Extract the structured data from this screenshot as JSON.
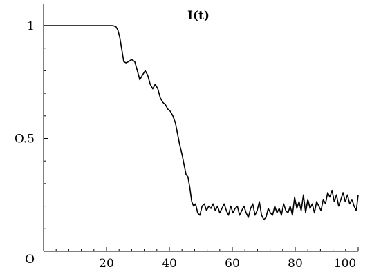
{
  "chart_data": {
    "type": "line",
    "title": "I(t)",
    "xlabel": "",
    "ylabel": "",
    "xlim": [
      0,
      100
    ],
    "ylim": [
      0,
      1.1
    ],
    "grid": false,
    "x_ticks": [
      {
        "value": 20,
        "label": "20"
      },
      {
        "value": 40,
        "label": "40"
      },
      {
        "value": 60,
        "label": "60"
      },
      {
        "value": 80,
        "label": "80"
      },
      {
        "value": 100,
        "label": "100"
      }
    ],
    "y_ticks": [
      {
        "value": 0,
        "label": "O"
      },
      {
        "value": 0.5,
        "label": "O.5"
      },
      {
        "value": 1,
        "label": "1"
      }
    ],
    "line_color": "#000000",
    "series": [
      {
        "x": [
          0,
          5,
          10,
          15,
          20,
          22,
          23,
          23.6,
          24.2,
          24.8,
          25.5,
          26.2,
          27,
          28,
          29,
          29.8,
          30.6,
          31.4,
          32.3,
          33.1,
          33.9,
          34.7,
          35.5,
          36.3,
          37.1,
          37.9,
          38.7,
          39.5,
          40.3,
          41.1,
          41.9,
          42.6,
          43.3,
          44.0,
          44.7,
          45.3,
          45.9,
          46.5,
          47.1,
          47.7,
          48.3,
          49,
          49.7,
          50.4,
          51.1,
          51.8,
          52.5,
          53.2,
          53.9,
          54.6,
          55.3,
          56,
          56.7,
          57.4,
          58.1,
          58.8,
          59.5,
          60.2,
          60.9,
          61.6,
          62.3,
          63,
          63.7,
          64.4,
          65.1,
          65.8,
          66.5,
          67.2,
          67.9,
          68.6,
          69.3,
          70,
          70.7,
          71.4,
          72.1,
          72.8,
          73.5,
          74.2,
          74.9,
          75.6,
          76.3,
          77,
          77.7,
          78.4,
          79.1,
          79.8,
          80.5,
          81.2,
          81.9,
          82.6,
          83.3,
          84,
          84.7,
          85.4,
          86.1,
          86.8,
          87.5,
          88.2,
          88.9,
          89.6,
          90.3,
          91,
          91.7,
          92.4,
          93.1,
          93.8,
          94.5,
          95.2,
          95.9,
          96.6,
          97.3,
          98,
          98.7,
          99.4,
          100
        ],
        "y": [
          1.0,
          1.0,
          1.0,
          1.0,
          1.0,
          1.0,
          0.995,
          0.98,
          0.95,
          0.9,
          0.84,
          0.835,
          0.84,
          0.85,
          0.84,
          0.8,
          0.76,
          0.78,
          0.8,
          0.78,
          0.74,
          0.72,
          0.74,
          0.72,
          0.68,
          0.66,
          0.65,
          0.63,
          0.62,
          0.6,
          0.57,
          0.52,
          0.47,
          0.43,
          0.38,
          0.34,
          0.33,
          0.28,
          0.22,
          0.2,
          0.21,
          0.17,
          0.16,
          0.2,
          0.21,
          0.18,
          0.2,
          0.19,
          0.21,
          0.18,
          0.2,
          0.17,
          0.19,
          0.21,
          0.18,
          0.16,
          0.2,
          0.17,
          0.19,
          0.2,
          0.16,
          0.18,
          0.2,
          0.17,
          0.15,
          0.19,
          0.21,
          0.16,
          0.18,
          0.22,
          0.16,
          0.14,
          0.15,
          0.19,
          0.17,
          0.16,
          0.2,
          0.17,
          0.19,
          0.16,
          0.21,
          0.18,
          0.17,
          0.2,
          0.16,
          0.24,
          0.19,
          0.22,
          0.18,
          0.25,
          0.17,
          0.23,
          0.19,
          0.21,
          0.17,
          0.22,
          0.2,
          0.18,
          0.23,
          0.21,
          0.26,
          0.24,
          0.27,
          0.22,
          0.25,
          0.2,
          0.23,
          0.26,
          0.22,
          0.25,
          0.21,
          0.23,
          0.2,
          0.18,
          0.25
        ]
      }
    ]
  }
}
